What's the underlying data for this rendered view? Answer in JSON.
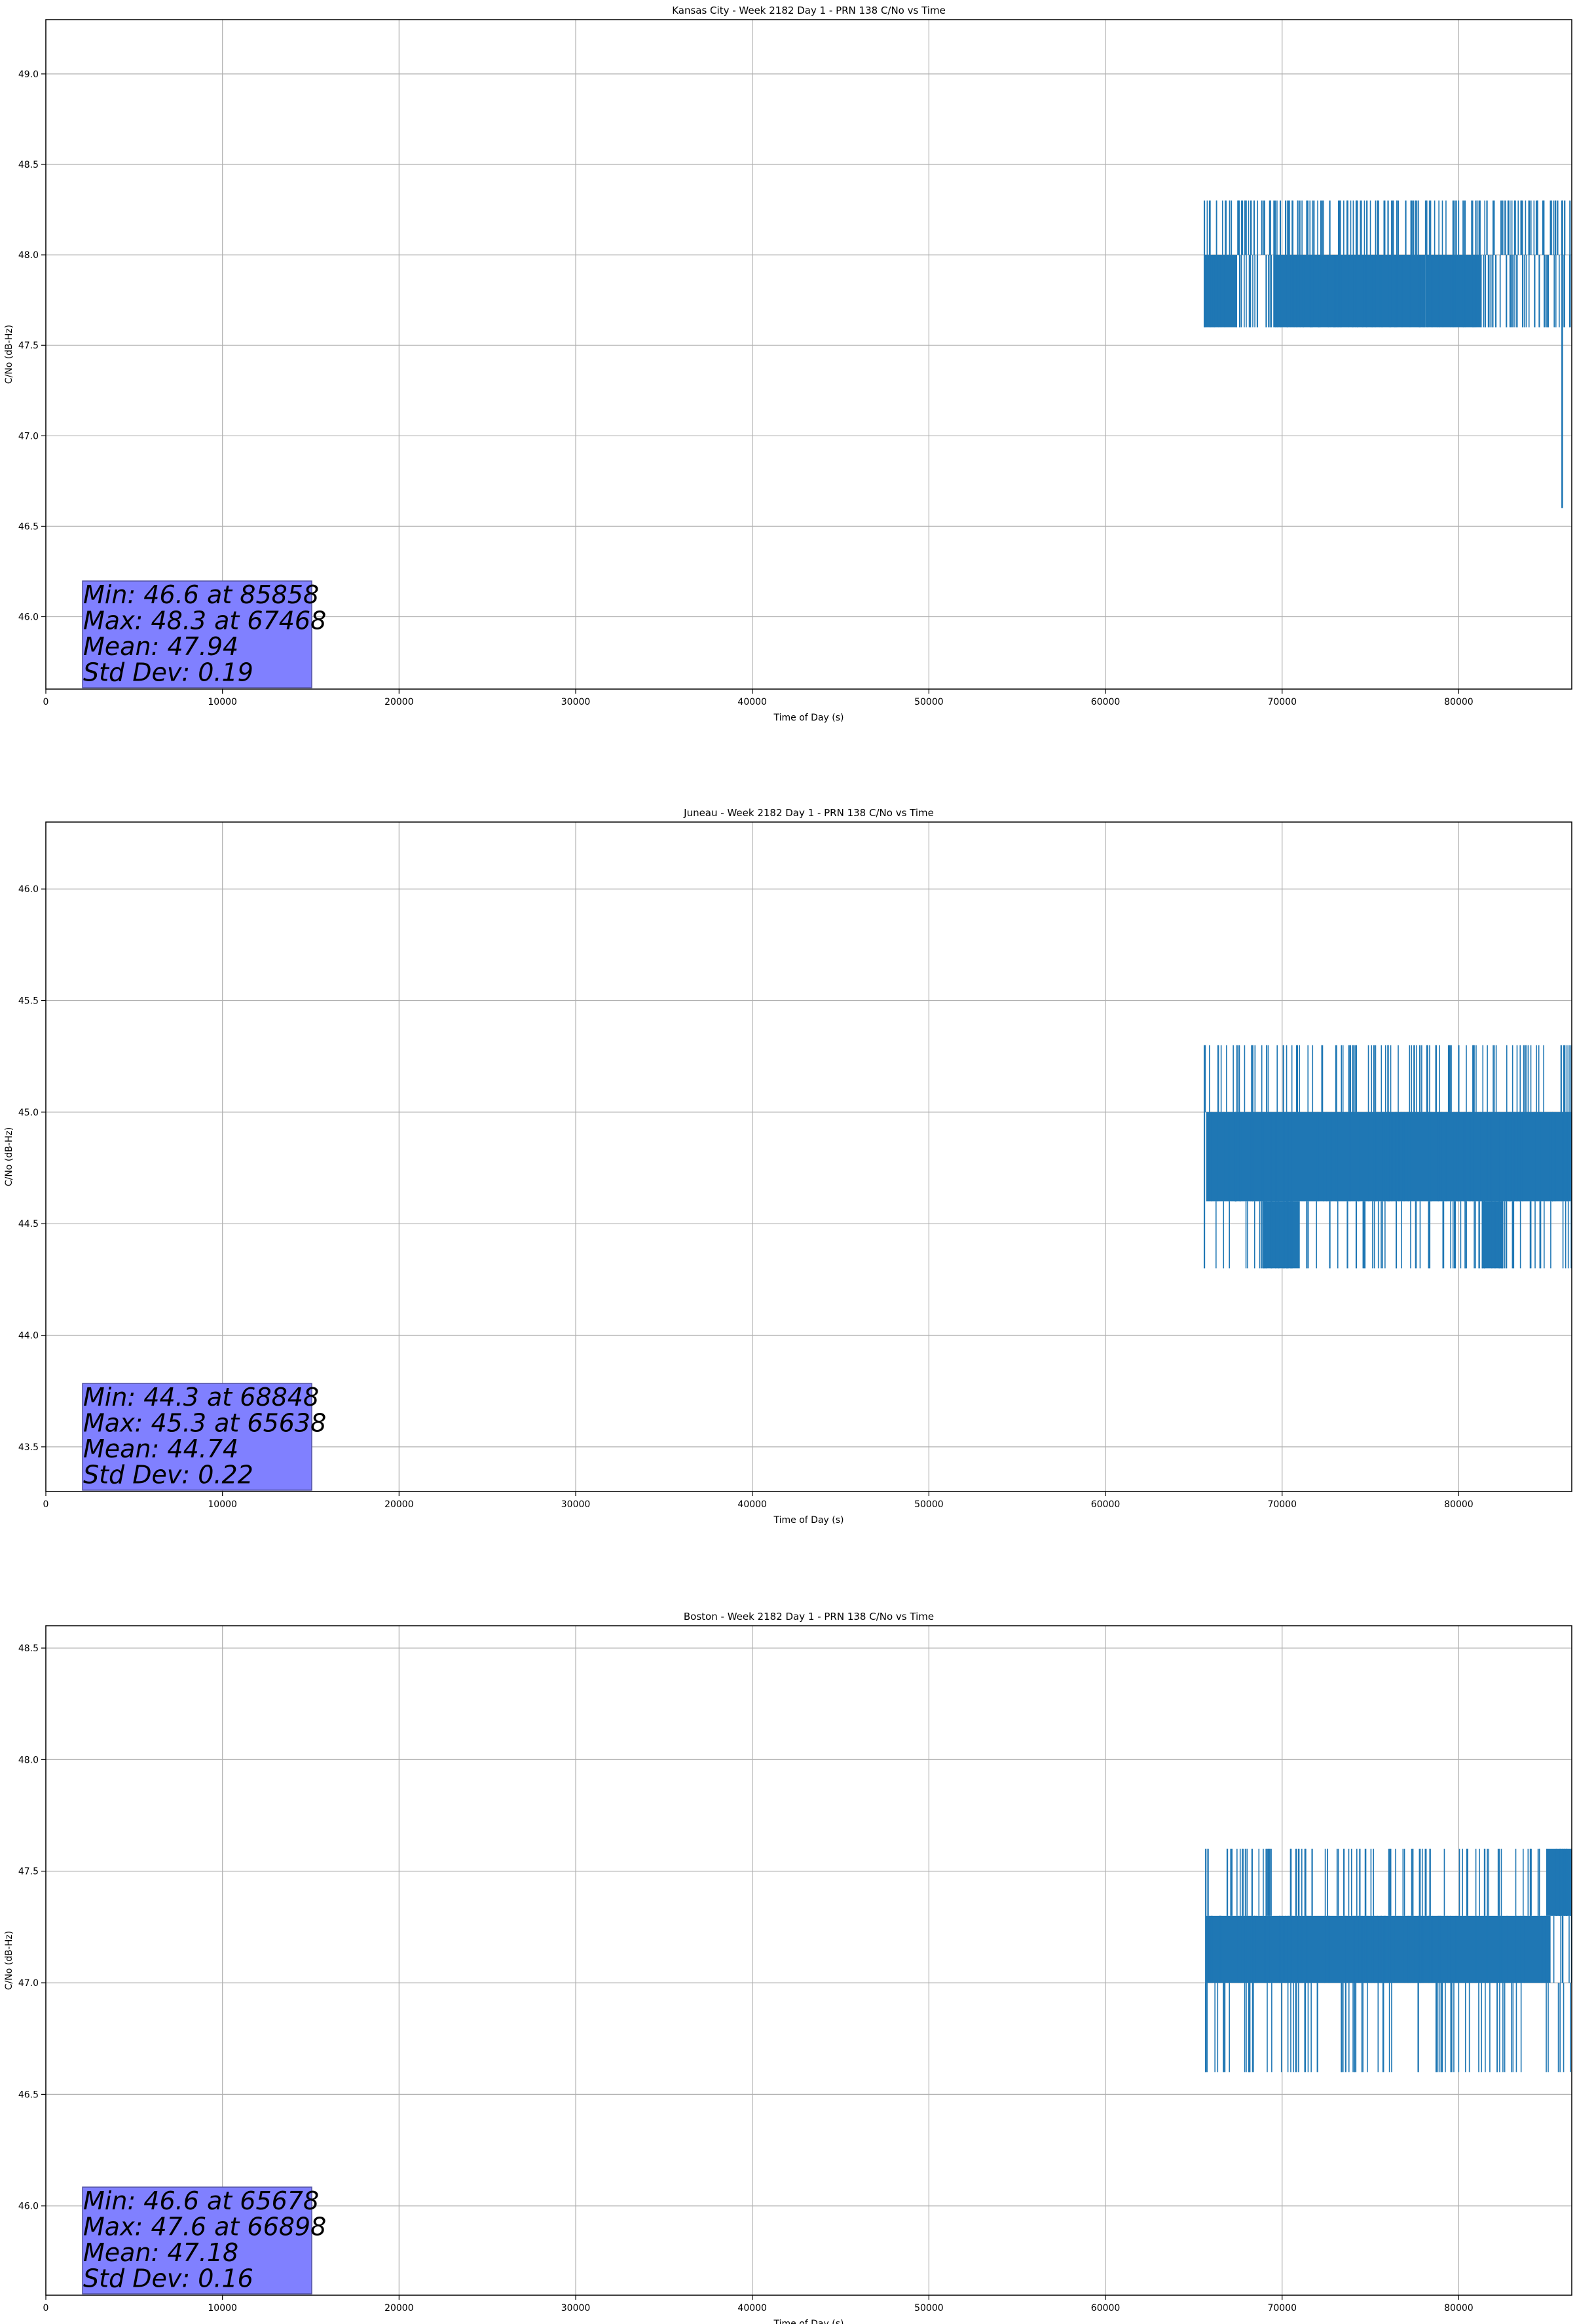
{
  "figure": {
    "colors": {
      "series": "#1f77b4",
      "grid": "#b0b0b0",
      "axes": "#000000",
      "stats_box_fill": "#8080ff",
      "stats_box_edge": "#5050a0"
    }
  },
  "chart_data": [
    {
      "type": "line",
      "title": "Kansas City - Week 2182 Day 1 - PRN 138 C/No vs Time",
      "xlabel": "Time of Day (s)",
      "ylabel": "C/No (dB-Hz)",
      "xlim": [
        0,
        86400
      ],
      "ylim": [
        45.6,
        49.3
      ],
      "xticks": [
        0,
        10000,
        20000,
        30000,
        40000,
        50000,
        60000,
        70000,
        80000
      ],
      "xtick_labels": [
        "0",
        "10000",
        "20000",
        "30000",
        "40000",
        "50000",
        "60000",
        "70000",
        "80000"
      ],
      "yticks": [
        46.0,
        46.5,
        47.0,
        47.5,
        48.0,
        48.5,
        49.0
      ],
      "ytick_labels": [
        "46.0",
        "46.5",
        "47.0",
        "47.5",
        "48.0",
        "48.5",
        "49.0"
      ],
      "grid": true,
      "series_start": 65600,
      "levels": [
        47.6,
        48.0,
        48.3
      ],
      "dense_band": [
        {
          "from": 65600,
          "to": 67400,
          "low": 47.6,
          "high": 48.0
        },
        {
          "from": 69500,
          "to": 78100,
          "low": 47.6,
          "high": 48.0
        },
        {
          "from": 78100,
          "to": 81300,
          "low": 47.6,
          "high": 48.0
        }
      ],
      "spikes_up": [
        67500,
        67750,
        69000,
        69300,
        69600,
        69900,
        70200,
        70600,
        71000,
        71400,
        71800,
        72200,
        72700,
        73200,
        73700,
        74200,
        74800,
        75400,
        76000,
        76500,
        77000,
        77600,
        81200,
        81600,
        82000,
        82400,
        82800,
        83200,
        83600,
        84000,
        84400,
        84800,
        85200,
        85600,
        86000,
        86300
      ],
      "spikes_down": [
        67600,
        68200,
        68600,
        69100,
        70300,
        71200,
        72100,
        73000,
        81500,
        82100,
        82700,
        83300,
        84300,
        85000
      ],
      "dip": {
        "x": 85858,
        "y": 46.6
      },
      "stats": [
        "Min: 46.6 at 85858",
        "Max: 48.3 at 67468",
        "Mean: 47.94",
        "Std Dev: 0.19"
      ]
    },
    {
      "type": "line",
      "title": "Juneau - Week 2182 Day 1 - PRN 138 C/No vs Time",
      "xlabel": "Time of Day (s)",
      "ylabel": "C/No (dB-Hz)",
      "xlim": [
        0,
        86400
      ],
      "ylim": [
        43.3,
        46.3
      ],
      "xticks": [
        0,
        10000,
        20000,
        30000,
        40000,
        50000,
        60000,
        70000,
        80000
      ],
      "xtick_labels": [
        "0",
        "10000",
        "20000",
        "30000",
        "40000",
        "50000",
        "60000",
        "70000",
        "80000"
      ],
      "yticks": [
        43.5,
        44.0,
        44.5,
        45.0,
        45.5,
        46.0
      ],
      "ytick_labels": [
        "43.5",
        "44.0",
        "44.5",
        "45.0",
        "45.5",
        "46.0"
      ],
      "grid": true,
      "series_start": 65600,
      "levels": [
        44.3,
        44.6,
        45.0,
        45.3
      ],
      "dense_band": [
        {
          "from": 65700,
          "to": 86400,
          "low": 44.6,
          "high": 45.0
        },
        {
          "from": 68900,
          "to": 71000,
          "low": 44.3,
          "high": 44.6
        },
        {
          "from": 81300,
          "to": 82500,
          "low": 44.3,
          "high": 44.6
        }
      ],
      "spikes_up": [
        65638,
        74000,
        74200,
        75200,
        76000,
        77800,
        78200,
        79500,
        80000,
        85800,
        86000
      ],
      "spikes_down": [
        68848,
        69100,
        69400,
        69800,
        70100,
        70500,
        71400,
        72700,
        73700,
        74200,
        78300,
        82300,
        82700,
        83100
      ],
      "dip": null,
      "stats": [
        "Min: 44.3 at 68848",
        "Max: 45.3 at 65638",
        "Mean: 44.74",
        "Std Dev: 0.22"
      ]
    },
    {
      "type": "line",
      "title": "Boston - Week 2182 Day 1 - PRN 138 C/No vs Time",
      "xlabel": "Time of Day (s)",
      "ylabel": "C/No (dB-Hz)",
      "xlim": [
        0,
        86400
      ],
      "ylim": [
        45.6,
        48.6
      ],
      "xticks": [
        0,
        10000,
        20000,
        30000,
        40000,
        50000,
        60000,
        70000,
        80000
      ],
      "xtick_labels": [
        "0",
        "10000",
        "20000",
        "30000",
        "40000",
        "50000",
        "60000",
        "70000",
        "80000"
      ],
      "yticks": [
        46.0,
        46.5,
        47.0,
        47.5,
        48.0,
        48.5
      ],
      "ytick_labels": [
        "46.0",
        "46.5",
        "47.0",
        "47.5",
        "48.0",
        "48.5"
      ],
      "grid": true,
      "series_start": 65678,
      "levels": [
        46.6,
        47.0,
        47.3,
        47.6
      ],
      "dense_band": [
        {
          "from": 65700,
          "to": 85200,
          "low": 47.0,
          "high": 47.3
        },
        {
          "from": 85000,
          "to": 86400,
          "low": 47.3,
          "high": 47.6
        }
      ],
      "spikes_up": [
        66898,
        67100,
        68300,
        69200,
        70500,
        71300,
        71700,
        73500,
        74400,
        76100,
        77400,
        80500
      ],
      "spikes_down": [
        65678,
        66700,
        72000,
        73600,
        79600
      ],
      "dip": null,
      "stats": [
        "Min: 46.6 at 65678",
        "Max: 47.6 at 66898",
        "Mean: 47.18",
        "Std Dev: 0.16"
      ]
    }
  ]
}
